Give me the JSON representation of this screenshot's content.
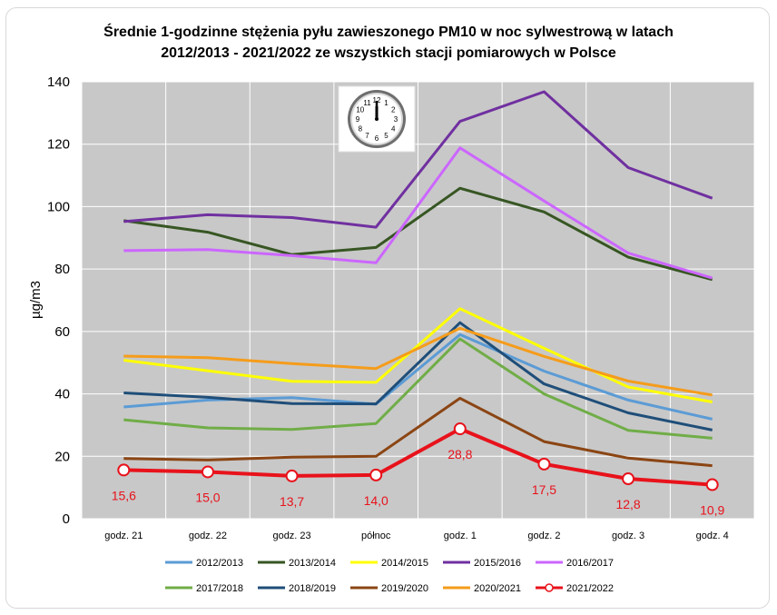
{
  "chart_data": {
    "type": "line",
    "title_line1": "Średnie 1-godzinne stężenia pyłu zawieszonego PM10 w noc sylwestrową w latach",
    "title_line2": "2012/2013 - 2021/2022 ze wszystkich stacji pomiarowych w Polsce",
    "xlabel": "",
    "ylabel": "µg/m3",
    "ylim": [
      0,
      140
    ],
    "yticks": [
      0,
      20,
      40,
      60,
      80,
      100,
      120,
      140
    ],
    "grid": true,
    "legend_position": "bottom",
    "plot_background": "#c8c8c8",
    "categories": [
      "godz. 21",
      "godz. 22",
      "godz. 23",
      "północ",
      "godz. 1",
      "godz. 2",
      "godz. 3",
      "godz. 4"
    ],
    "series": [
      {
        "name": "2012/2013",
        "color": "#5b9bd5",
        "values": [
          35.8,
          38.0,
          38.8,
          36.7,
          59.0,
          47.3,
          38.0,
          31.9
        ]
      },
      {
        "name": "2013/2014",
        "color": "#375623",
        "values": [
          95.5,
          91.8,
          84.6,
          86.9,
          105.9,
          98.3,
          83.8,
          76.6
        ]
      },
      {
        "name": "2014/2015",
        "color": "#ffff00",
        "values": [
          50.8,
          47.4,
          44.0,
          43.7,
          67.3,
          54.6,
          42.2,
          37.4
        ]
      },
      {
        "name": "2015/2016",
        "color": "#7030a0",
        "values": [
          95.2,
          97.4,
          96.5,
          93.4,
          127.3,
          136.8,
          112.5,
          102.7
        ]
      },
      {
        "name": "2016/2017",
        "color": "#cc66ff",
        "values": [
          85.9,
          86.2,
          84.3,
          82.0,
          118.8,
          101.8,
          85.1,
          77.1
        ]
      },
      {
        "name": "2017/2018",
        "color": "#70ad47",
        "values": [
          31.7,
          29.1,
          28.6,
          30.5,
          57.6,
          40.0,
          28.3,
          25.8
        ]
      },
      {
        "name": "2018/2019",
        "color": "#1f4e79",
        "values": [
          40.3,
          38.9,
          36.9,
          36.8,
          62.8,
          43.2,
          33.9,
          28.4
        ]
      },
      {
        "name": "2019/2020",
        "color": "#8b4513",
        "values": [
          19.3,
          18.8,
          19.7,
          20.0,
          38.6,
          24.7,
          19.4,
          17.0
        ]
      },
      {
        "name": "2020/2021",
        "color": "#f59c1a",
        "values": [
          52.1,
          51.6,
          49.7,
          48.1,
          61.0,
          52.0,
          44.1,
          39.6
        ]
      },
      {
        "name": "2021/2022",
        "color": "#e8121b",
        "values": [
          15.6,
          15.0,
          13.7,
          14.0,
          28.8,
          17.5,
          12.8,
          10.9
        ],
        "markers": true,
        "data_labels": [
          "15,6",
          "15,0",
          "13,7",
          "14,0",
          "28,8",
          "17,5",
          "12,8",
          "10,9"
        ]
      }
    ],
    "clock_icon": "clock-midnight-icon"
  }
}
